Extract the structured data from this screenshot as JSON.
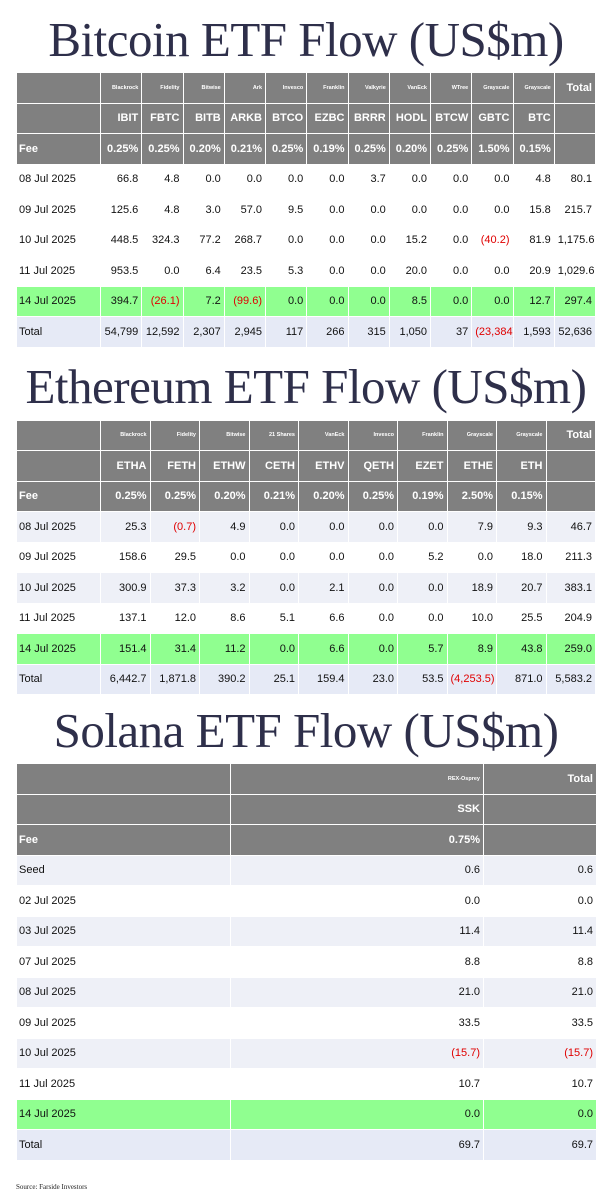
{
  "bitcoin": {
    "title": "Bitcoin ETF Flow (US$m)",
    "issuers": [
      "Blackrock",
      "Fidelity",
      "Bitwise",
      "Ark",
      "Invesco",
      "Franklin",
      "Valkyrie",
      "VanEck",
      "WTree",
      "Grayscale",
      "Grayscale"
    ],
    "total_header": "Total",
    "tickers": [
      "IBIT",
      "FBTC",
      "BITB",
      "ARKB",
      "BTCO",
      "EZBC",
      "BRRR",
      "HODL",
      "BTCW",
      "GBTC",
      "BTC"
    ],
    "fee_label": "Fee",
    "fees": [
      "0.25%",
      "0.25%",
      "0.20%",
      "0.21%",
      "0.25%",
      "0.19%",
      "0.25%",
      "0.20%",
      "0.25%",
      "1.50%",
      "0.15%"
    ],
    "rows": [
      {
        "label": "08 Jul 2025",
        "values": [
          "66.8",
          "4.8",
          "0.0",
          "0.0",
          "0.0",
          "0.0",
          "3.7",
          "0.0",
          "0.0",
          "0.0",
          "4.8"
        ],
        "total": "80.1"
      },
      {
        "label": "09 Jul 2025",
        "values": [
          "125.6",
          "4.8",
          "3.0",
          "57.0",
          "9.5",
          "0.0",
          "0.0",
          "0.0",
          "0.0",
          "0.0",
          "15.8"
        ],
        "total": "215.7"
      },
      {
        "label": "10 Jul 2025",
        "values": [
          "448.5",
          "324.3",
          "77.2",
          "268.7",
          "0.0",
          "0.0",
          "0.0",
          "15.2",
          "0.0",
          "(40.2)",
          "81.9"
        ],
        "total": "1,175.6"
      },
      {
        "label": "11 Jul 2025",
        "values": [
          "953.5",
          "0.0",
          "6.4",
          "23.5",
          "5.3",
          "0.0",
          "0.0",
          "20.0",
          "0.0",
          "0.0",
          "20.9"
        ],
        "total": "1,029.6"
      },
      {
        "label": "14 Jul 2025",
        "values": [
          "394.7",
          "(26.1)",
          "7.2",
          "(99.6)",
          "0.0",
          "0.0",
          "0.0",
          "8.5",
          "0.0",
          "0.0",
          "12.7"
        ],
        "total": "297.4",
        "highlight": true
      }
    ],
    "total_row": {
      "label": "Total",
      "values": [
        "54,799",
        "12,592",
        "2,307",
        "2,945",
        "117",
        "266",
        "315",
        "1,050",
        "37",
        "(23,384)",
        "1,593"
      ],
      "total": "52,636"
    }
  },
  "ethereum": {
    "title": "Ethereum ETF Flow (US$m)",
    "issuers": [
      "Blackrock",
      "Fidelity",
      "Bitwise",
      "21 Shares",
      "VanEck",
      "Invesco",
      "Franklin",
      "Grayscale",
      "Grayscale"
    ],
    "total_header": "Total",
    "tickers": [
      "ETHA",
      "FETH",
      "ETHW",
      "CETH",
      "ETHV",
      "QETH",
      "EZET",
      "ETHE",
      "ETH"
    ],
    "fee_label": "Fee",
    "fees": [
      "0.25%",
      "0.25%",
      "0.20%",
      "0.21%",
      "0.20%",
      "0.25%",
      "0.19%",
      "2.50%",
      "0.15%"
    ],
    "rows": [
      {
        "label": "08 Jul 2025",
        "values": [
          "25.3",
          "(0.7)",
          "4.9",
          "0.0",
          "0.0",
          "0.0",
          "0.0",
          "7.9",
          "9.3"
        ],
        "total": "46.7"
      },
      {
        "label": "09 Jul 2025",
        "values": [
          "158.6",
          "29.5",
          "0.0",
          "0.0",
          "0.0",
          "0.0",
          "5.2",
          "0.0",
          "18.0"
        ],
        "total": "211.3"
      },
      {
        "label": "10 Jul 2025",
        "values": [
          "300.9",
          "37.3",
          "3.2",
          "0.0",
          "2.1",
          "0.0",
          "0.0",
          "18.9",
          "20.7"
        ],
        "total": "383.1"
      },
      {
        "label": "11 Jul 2025",
        "values": [
          "137.1",
          "12.0",
          "8.6",
          "5.1",
          "6.6",
          "0.0",
          "0.0",
          "10.0",
          "25.5"
        ],
        "total": "204.9"
      },
      {
        "label": "14 Jul 2025",
        "values": [
          "151.4",
          "31.4",
          "11.2",
          "0.0",
          "6.6",
          "0.0",
          "5.7",
          "8.9",
          "43.8"
        ],
        "total": "259.0",
        "highlight": true
      }
    ],
    "total_row": {
      "label": "Total",
      "values": [
        "6,442.7",
        "1,871.8",
        "390.2",
        "25.1",
        "159.4",
        "23.0",
        "53.5",
        "(4,253.5)",
        "871.0"
      ],
      "total": "5,583.2"
    }
  },
  "solana": {
    "title": "Solana ETF Flow (US$m)",
    "issuers": [
      "REX-Osprey"
    ],
    "total_header": "Total",
    "tickers": [
      "SSK"
    ],
    "fee_label": "Fee",
    "fees": [
      "0.75%"
    ],
    "rows": [
      {
        "label": "Seed",
        "values": [
          "0.6"
        ],
        "total": "0.6"
      },
      {
        "label": "02 Jul 2025",
        "values": [
          "0.0"
        ],
        "total": "0.0"
      },
      {
        "label": "03 Jul 2025",
        "values": [
          "11.4"
        ],
        "total": "11.4"
      },
      {
        "label": "07 Jul 2025",
        "values": [
          "8.8"
        ],
        "total": "8.8"
      },
      {
        "label": "08 Jul 2025",
        "values": [
          "21.0"
        ],
        "total": "21.0"
      },
      {
        "label": "09 Jul 2025",
        "values": [
          "33.5"
        ],
        "total": "33.5"
      },
      {
        "label": "10 Jul 2025",
        "values": [
          "(15.7)"
        ],
        "total": "(15.7)"
      },
      {
        "label": "11 Jul 2025",
        "values": [
          "10.7"
        ],
        "total": "10.7"
      },
      {
        "label": "14 Jul 2025",
        "values": [
          "0.0"
        ],
        "total": "0.0",
        "highlight": true
      }
    ],
    "total_row": {
      "label": "Total",
      "values": [
        "69.7"
      ],
      "total": "69.7"
    }
  },
  "source": "Source: Farside Investors"
}
